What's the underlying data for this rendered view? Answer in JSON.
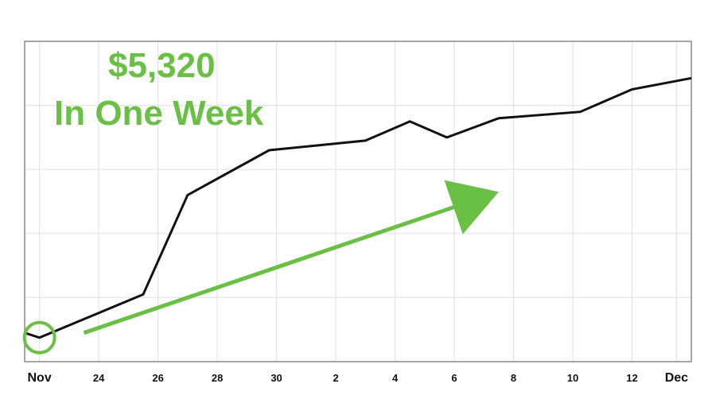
{
  "headline": {
    "amount": "$5,320",
    "caption": "In One Week"
  },
  "colors": {
    "accent": "#6abf45",
    "line": "#111111",
    "grid": "#e4e4e4",
    "frame": "#888888"
  },
  "chart_data": {
    "type": "line",
    "title": "",
    "xlabel": "",
    "ylabel": "",
    "y_axis_labels": "none",
    "grid": true,
    "xlim": [
      "2023-11-21T12:00",
      "2023-12-14T00:00"
    ],
    "ylim": [
      0,
      100
    ],
    "x_ticks": [
      {
        "label": "Nov",
        "x": "2023-11-22T00:00",
        "major": true
      },
      {
        "label": "24",
        "x": "2023-11-24T00:00",
        "major": false
      },
      {
        "label": "26",
        "x": "2023-11-26T00:00",
        "major": false
      },
      {
        "label": "28",
        "x": "2023-11-28T00:00",
        "major": false
      },
      {
        "label": "30",
        "x": "2023-11-30T00:00",
        "major": false
      },
      {
        "label": "2",
        "x": "2023-12-02T00:00",
        "major": false
      },
      {
        "label": "4",
        "x": "2023-12-04T00:00",
        "major": false
      },
      {
        "label": "6",
        "x": "2023-12-06T00:00",
        "major": false
      },
      {
        "label": "8",
        "x": "2023-12-08T00:00",
        "major": false
      },
      {
        "label": "10",
        "x": "2023-12-10T00:00",
        "major": false
      },
      {
        "label": "12",
        "x": "2023-12-12T00:00",
        "major": false
      },
      {
        "label": "Dec",
        "x": "2023-12-13T12:00",
        "major": true
      }
    ],
    "y_gridlines": [
      20,
      40,
      60,
      80
    ],
    "series": [
      {
        "points": [
          {
            "x": "2023-11-21T12:00",
            "y": 9
          },
          {
            "x": "2023-11-22T00:00",
            "y": 7.5
          },
          {
            "x": "2023-11-25T12:00",
            "y": 21
          },
          {
            "x": "2023-11-27T00:00",
            "y": 52
          },
          {
            "x": "2023-11-29T18:00",
            "y": 66
          },
          {
            "x": "2023-12-03T00:00",
            "y": 69
          },
          {
            "x": "2023-12-04T12:00",
            "y": 75
          },
          {
            "x": "2023-12-05T18:00",
            "y": 70
          },
          {
            "x": "2023-12-07T12:00",
            "y": 76
          },
          {
            "x": "2023-12-10T06:00",
            "y": 78
          },
          {
            "x": "2023-12-12T00:00",
            "y": 85
          },
          {
            "x": "2023-12-14T00:00",
            "y": 88.5
          }
        ]
      }
    ],
    "annotations": [
      {
        "type": "circle",
        "x": "2023-11-22T00:00",
        "y": 7.5
      },
      {
        "type": "arrow",
        "from": {
          "x": "2023-11-23T12:00",
          "y": 9
        },
        "to": {
          "x": "2023-12-07T12:00",
          "y": 53
        }
      }
    ]
  }
}
